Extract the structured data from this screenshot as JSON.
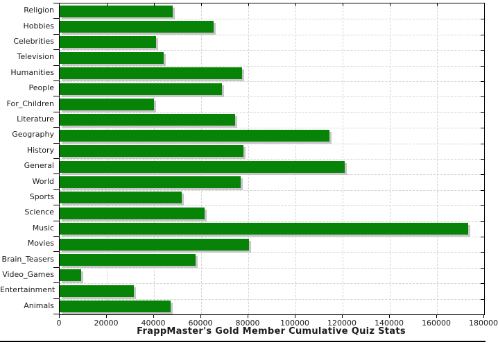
{
  "chart_data": {
    "type": "bar",
    "orientation": "horizontal",
    "title": "FrappMaster's Gold Member Cumulative Quiz Stats",
    "categories": [
      "Religion",
      "Hobbies",
      "Celebrities",
      "Television",
      "Humanities",
      "People",
      "For_Children",
      "Literature",
      "Geography",
      "History",
      "General",
      "World",
      "Sports",
      "Science",
      "Music",
      "Movies",
      "Brain_Teasers",
      "Video_Games",
      "Entertainment",
      "Animals"
    ],
    "values": [
      48000,
      65400,
      41000,
      44200,
      77400,
      68900,
      40000,
      74300,
      114400,
      77800,
      121000,
      76800,
      51800,
      61400,
      173300,
      80300,
      57600,
      9000,
      31600,
      46900
    ],
    "xlabel": "",
    "ylabel": "",
    "xlim": [
      0,
      180000
    ],
    "x_ticks": [
      0,
      20000,
      40000,
      60000,
      80000,
      100000,
      120000,
      140000,
      160000,
      180000
    ],
    "x_tick_labels": [
      "0",
      "20000",
      "40000",
      "60000",
      "80000",
      "100000",
      "120000",
      "140000",
      "160000",
      "180000"
    ],
    "grid": true,
    "legend": "none",
    "colors": {
      "bar": "#078407",
      "bar_shadow": "#c6c6c6",
      "grid": "#d4d4d4",
      "axis": "#000000",
      "text": "#1a1a1a"
    }
  }
}
